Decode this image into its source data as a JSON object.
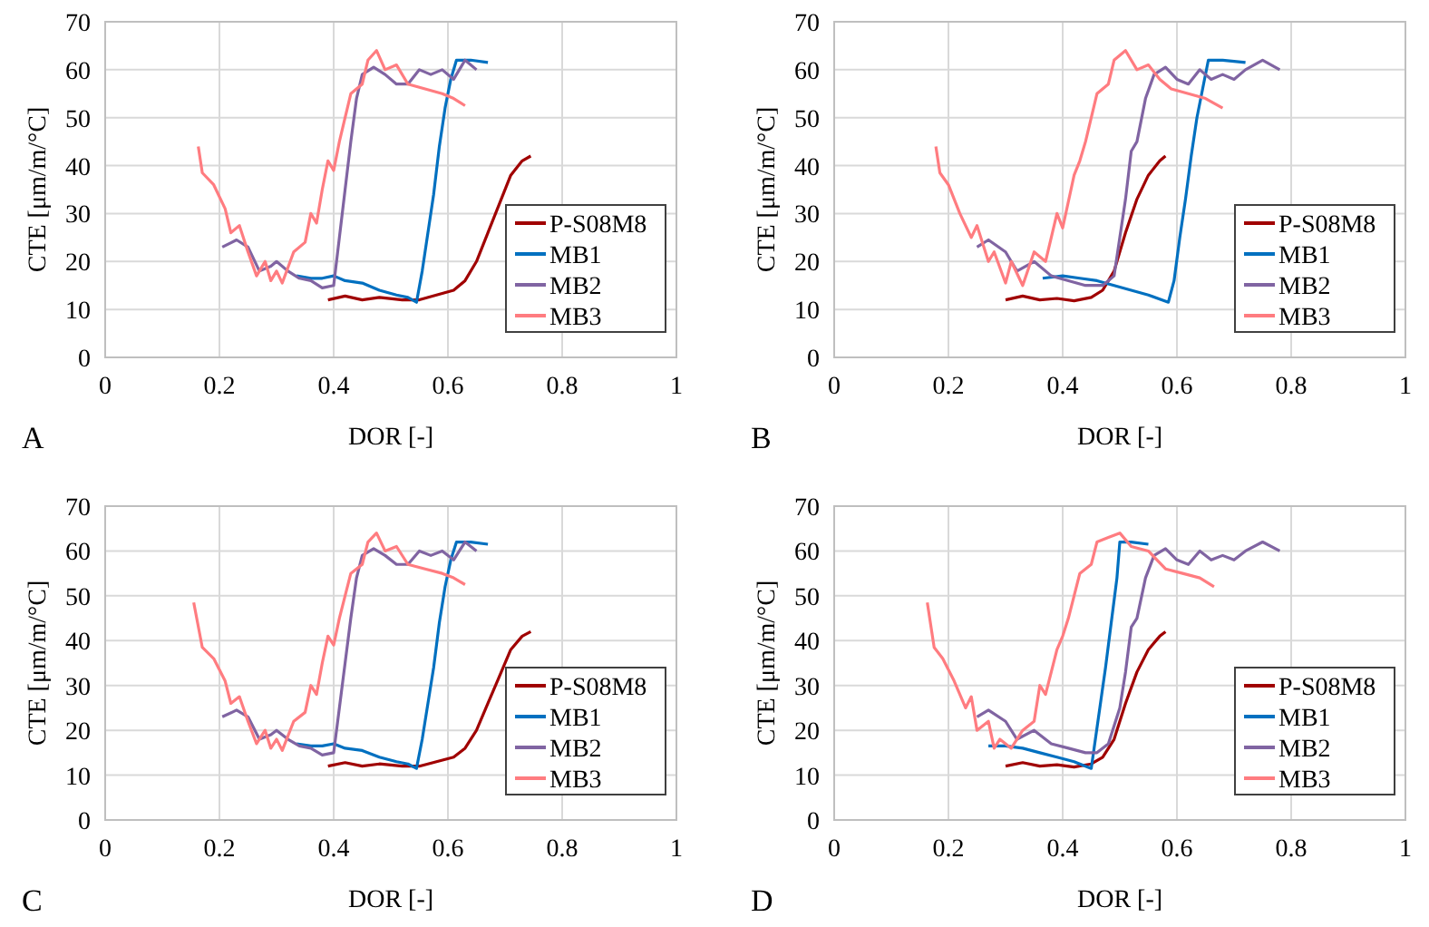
{
  "chart_data": [
    {
      "type": "line",
      "xlabel": "DOR [-]",
      "ylabel": "CTE [μm/m/°C]",
      "annotations": [
        "A"
      ],
      "legend": "right",
      "grid": true,
      "xlim": [
        0,
        1
      ],
      "ylim": [
        0,
        70
      ],
      "xticks": [
        0,
        0.2,
        0.4,
        0.6,
        0.8,
        1
      ],
      "yticks": [
        0,
        10,
        20,
        30,
        40,
        50,
        60,
        70
      ],
      "series": [
        {
          "name": "P-S08M8",
          "color": "#a00000",
          "x": [
            0.39,
            0.42,
            0.45,
            0.48,
            0.52,
            0.55,
            0.58,
            0.61,
            0.63,
            0.65,
            0.67,
            0.69,
            0.71,
            0.73,
            0.745
          ],
          "values": [
            12,
            12.8,
            12,
            12.5,
            12,
            12,
            13,
            14,
            16,
            20,
            26,
            32,
            38,
            41,
            42
          ]
        },
        {
          "name": "MB1",
          "color": "#0070c0",
          "x": [
            0.335,
            0.36,
            0.38,
            0.4,
            0.42,
            0.45,
            0.48,
            0.51,
            0.53,
            0.545,
            0.555,
            0.565,
            0.575,
            0.585,
            0.595,
            0.605,
            0.615,
            0.64,
            0.67
          ],
          "values": [
            17,
            16.5,
            16.5,
            17,
            16,
            15.5,
            14,
            13,
            12.5,
            11.5,
            18,
            26,
            34,
            44,
            52,
            58,
            62,
            62,
            61.5
          ]
        },
        {
          "name": "MB2",
          "color": "#8064a2",
          "x": [
            0.205,
            0.23,
            0.25,
            0.27,
            0.29,
            0.3,
            0.32,
            0.34,
            0.36,
            0.38,
            0.4,
            0.41,
            0.42,
            0.43,
            0.44,
            0.45,
            0.47,
            0.49,
            0.51,
            0.53,
            0.55,
            0.57,
            0.59,
            0.61,
            0.63,
            0.65
          ],
          "values": [
            23,
            24.5,
            23,
            18,
            19,
            20,
            18,
            16.5,
            16,
            14.5,
            15,
            25,
            35,
            45,
            54,
            59,
            60.5,
            59,
            57,
            57,
            60,
            59,
            60,
            58,
            62,
            60
          ]
        },
        {
          "name": "MB3",
          "color": "#ff7c80",
          "x": [
            0.163,
            0.17,
            0.19,
            0.21,
            0.22,
            0.235,
            0.25,
            0.265,
            0.28,
            0.29,
            0.3,
            0.31,
            0.33,
            0.35,
            0.36,
            0.37,
            0.38,
            0.39,
            0.4,
            0.41,
            0.42,
            0.43,
            0.45,
            0.46,
            0.475,
            0.49,
            0.51,
            0.53,
            0.56,
            0.59,
            0.61,
            0.63
          ],
          "values": [
            44,
            38.5,
            36,
            31,
            26,
            27.5,
            22,
            17,
            20,
            16,
            18,
            15.5,
            22,
            24,
            30,
            28,
            35,
            41,
            39,
            45,
            50,
            55,
            57,
            62,
            64,
            60,
            61,
            57,
            56,
            55,
            54,
            52.5
          ]
        }
      ]
    },
    {
      "type": "line",
      "xlabel": "DOR [-]",
      "ylabel": "CTE [μm/m/°C]",
      "annotations": [
        "B"
      ],
      "legend": "right",
      "grid": true,
      "xlim": [
        0,
        1
      ],
      "ylim": [
        0,
        70
      ],
      "xticks": [
        0,
        0.2,
        0.4,
        0.6,
        0.8,
        1
      ],
      "yticks": [
        0,
        10,
        20,
        30,
        40,
        50,
        60,
        70
      ],
      "series": [
        {
          "name": "P-S08M8",
          "color": "#a00000",
          "x": [
            0.3,
            0.33,
            0.36,
            0.39,
            0.42,
            0.45,
            0.47,
            0.49,
            0.51,
            0.53,
            0.55,
            0.57,
            0.58
          ],
          "values": [
            12,
            12.8,
            12,
            12.3,
            11.8,
            12.5,
            14,
            18,
            26,
            33,
            38,
            41,
            42
          ]
        },
        {
          "name": "MB1",
          "color": "#0070c0",
          "x": [
            0.365,
            0.4,
            0.43,
            0.46,
            0.49,
            0.52,
            0.55,
            0.585,
            0.595,
            0.605,
            0.615,
            0.625,
            0.635,
            0.645,
            0.655,
            0.68,
            0.72
          ],
          "values": [
            16.5,
            17,
            16.5,
            16,
            15,
            14,
            13,
            11.5,
            16,
            25,
            33,
            42,
            50,
            56,
            62,
            62,
            61.5
          ]
        },
        {
          "name": "MB2",
          "color": "#8064a2",
          "x": [
            0.25,
            0.27,
            0.3,
            0.32,
            0.35,
            0.38,
            0.41,
            0.44,
            0.47,
            0.49,
            0.5,
            0.51,
            0.52,
            0.53,
            0.545,
            0.56,
            0.58,
            0.6,
            0.62,
            0.64,
            0.66,
            0.68,
            0.7,
            0.72,
            0.75,
            0.78
          ],
          "values": [
            23,
            24.5,
            22,
            18,
            20,
            17,
            16,
            15,
            15,
            17,
            25,
            33,
            43,
            45,
            54,
            59,
            60.5,
            58,
            57,
            60,
            58,
            59,
            58,
            60,
            62,
            60
          ]
        },
        {
          "name": "MB3",
          "color": "#ff7c80",
          "x": [
            0.178,
            0.185,
            0.2,
            0.22,
            0.24,
            0.25,
            0.27,
            0.28,
            0.3,
            0.31,
            0.33,
            0.35,
            0.37,
            0.39,
            0.4,
            0.42,
            0.43,
            0.44,
            0.46,
            0.48,
            0.49,
            0.51,
            0.53,
            0.55,
            0.57,
            0.59,
            0.62,
            0.65,
            0.68
          ],
          "values": [
            44,
            38.5,
            36,
            30,
            25,
            27.5,
            20,
            22,
            15.5,
            20,
            15,
            22,
            20,
            30,
            27,
            38,
            41,
            45,
            55,
            57,
            62,
            64,
            60,
            61,
            58,
            56,
            55,
            54,
            52
          ]
        }
      ]
    },
    {
      "type": "line",
      "xlabel": "DOR [-]",
      "ylabel": "CTE [μm/m/°C]",
      "annotations": [
        "C"
      ],
      "legend": "right",
      "grid": true,
      "xlim": [
        0,
        1
      ],
      "ylim": [
        0,
        70
      ],
      "xticks": [
        0,
        0.2,
        0.4,
        0.6,
        0.8,
        1
      ],
      "yticks": [
        0,
        10,
        20,
        30,
        40,
        50,
        60,
        70
      ],
      "series": [
        {
          "name": "P-S08M8",
          "color": "#a00000",
          "x": [
            0.39,
            0.42,
            0.45,
            0.48,
            0.52,
            0.55,
            0.58,
            0.61,
            0.63,
            0.65,
            0.67,
            0.69,
            0.71,
            0.73,
            0.745
          ],
          "values": [
            12,
            12.8,
            12,
            12.5,
            12,
            12,
            13,
            14,
            16,
            20,
            26,
            32,
            38,
            41,
            42
          ]
        },
        {
          "name": "MB1",
          "color": "#0070c0",
          "x": [
            0.335,
            0.36,
            0.38,
            0.4,
            0.42,
            0.45,
            0.48,
            0.51,
            0.53,
            0.545,
            0.555,
            0.565,
            0.575,
            0.585,
            0.595,
            0.605,
            0.615,
            0.64,
            0.67
          ],
          "values": [
            17,
            16.5,
            16.5,
            17,
            16,
            15.5,
            14,
            13,
            12.5,
            11.5,
            18,
            26,
            34,
            44,
            52,
            58,
            62,
            62,
            61.5
          ]
        },
        {
          "name": "MB2",
          "color": "#8064a2",
          "x": [
            0.205,
            0.23,
            0.25,
            0.27,
            0.29,
            0.3,
            0.32,
            0.34,
            0.36,
            0.38,
            0.4,
            0.41,
            0.42,
            0.43,
            0.44,
            0.45,
            0.47,
            0.49,
            0.51,
            0.53,
            0.55,
            0.57,
            0.59,
            0.61,
            0.63,
            0.65
          ],
          "values": [
            23,
            24.5,
            23,
            18,
            19,
            20,
            18,
            16.5,
            16,
            14.5,
            15,
            25,
            35,
            45,
            54,
            59,
            60.5,
            59,
            57,
            57,
            60,
            59,
            60,
            58,
            62,
            60
          ]
        },
        {
          "name": "MB3",
          "color": "#ff7c80",
          "x": [
            0.155,
            0.17,
            0.19,
            0.21,
            0.22,
            0.235,
            0.25,
            0.265,
            0.28,
            0.29,
            0.3,
            0.31,
            0.33,
            0.35,
            0.36,
            0.37,
            0.38,
            0.39,
            0.4,
            0.41,
            0.42,
            0.43,
            0.45,
            0.46,
            0.475,
            0.49,
            0.51,
            0.53,
            0.56,
            0.59,
            0.61,
            0.63
          ],
          "values": [
            48.5,
            38.5,
            36,
            31,
            26,
            27.5,
            22,
            17,
            20,
            16,
            18,
            15.5,
            22,
            24,
            30,
            28,
            35,
            41,
            39,
            45,
            50,
            55,
            57,
            62,
            64,
            60,
            61,
            57,
            56,
            55,
            54,
            52.5
          ]
        }
      ]
    },
    {
      "type": "line",
      "xlabel": "DOR [-]",
      "ylabel": "CTE [μm/m/°C]",
      "annotations": [
        "D"
      ],
      "legend": "right",
      "grid": true,
      "xlim": [
        0,
        1
      ],
      "ylim": [
        0,
        70
      ],
      "xticks": [
        0,
        0.2,
        0.4,
        0.6,
        0.8,
        1
      ],
      "yticks": [
        0,
        10,
        20,
        30,
        40,
        50,
        60,
        70
      ],
      "series": [
        {
          "name": "P-S08M8",
          "color": "#a00000",
          "x": [
            0.3,
            0.33,
            0.36,
            0.39,
            0.42,
            0.45,
            0.47,
            0.49,
            0.51,
            0.53,
            0.55,
            0.57,
            0.58
          ],
          "values": [
            12,
            12.8,
            12,
            12.3,
            11.8,
            12.5,
            14,
            18,
            26,
            33,
            38,
            41,
            42
          ]
        },
        {
          "name": "MB1",
          "color": "#0070c0",
          "x": [
            0.27,
            0.3,
            0.33,
            0.36,
            0.39,
            0.42,
            0.45,
            0.455,
            0.465,
            0.475,
            0.485,
            0.495,
            0.5,
            0.52,
            0.55
          ],
          "values": [
            16.5,
            16.5,
            16,
            15,
            14,
            13,
            11.5,
            16,
            25,
            34,
            44,
            54,
            62,
            62,
            61.5
          ]
        },
        {
          "name": "MB2",
          "color": "#8064a2",
          "x": [
            0.25,
            0.27,
            0.3,
            0.32,
            0.35,
            0.38,
            0.41,
            0.44,
            0.46,
            0.48,
            0.5,
            0.51,
            0.52,
            0.53,
            0.545,
            0.56,
            0.58,
            0.6,
            0.62,
            0.64,
            0.66,
            0.68,
            0.7,
            0.72,
            0.75,
            0.78
          ],
          "values": [
            23,
            24.5,
            22,
            18,
            20,
            17,
            16,
            15,
            15,
            17,
            25,
            33,
            43,
            45,
            54,
            59,
            60.5,
            58,
            57,
            60,
            58,
            59,
            58,
            60,
            62,
            60
          ]
        },
        {
          "name": "MB3",
          "color": "#ff7c80",
          "x": [
            0.163,
            0.175,
            0.19,
            0.21,
            0.23,
            0.24,
            0.25,
            0.27,
            0.28,
            0.29,
            0.31,
            0.33,
            0.35,
            0.36,
            0.37,
            0.39,
            0.4,
            0.41,
            0.42,
            0.43,
            0.45,
            0.46,
            0.48,
            0.5,
            0.52,
            0.55,
            0.58,
            0.61,
            0.64,
            0.665
          ],
          "values": [
            48.5,
            38.5,
            36,
            31,
            25,
            27.5,
            20,
            22,
            16,
            18,
            16,
            20,
            22,
            30,
            28,
            38,
            41,
            45,
            50,
            55,
            57,
            62,
            63,
            64,
            61,
            60,
            56,
            55,
            54,
            52
          ]
        }
      ]
    }
  ]
}
